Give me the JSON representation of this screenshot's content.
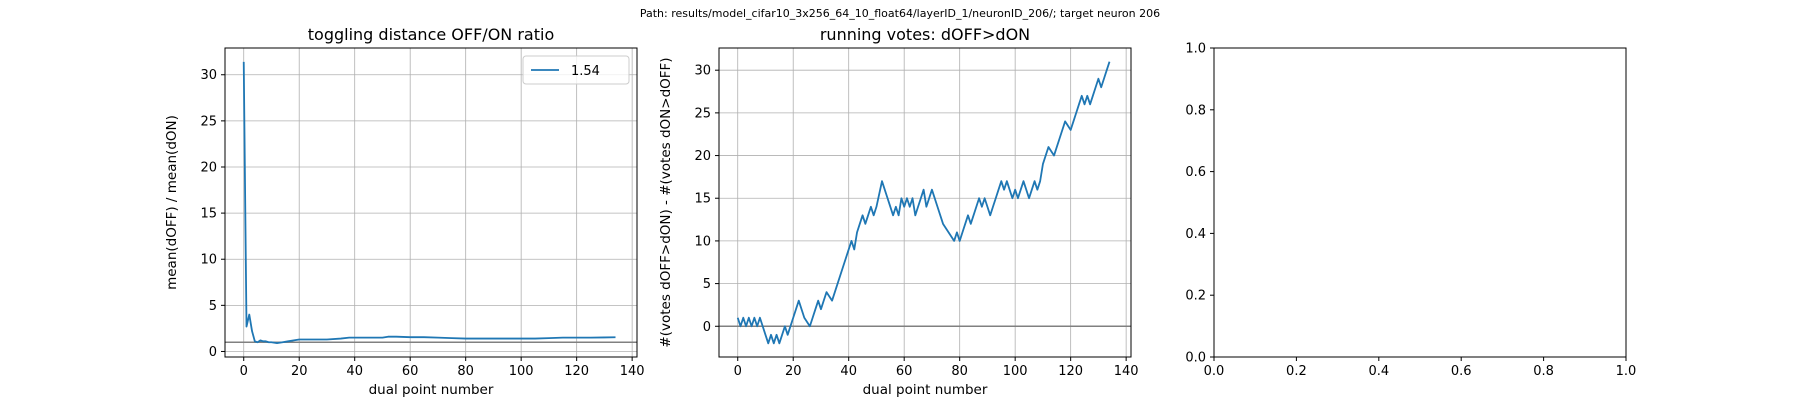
{
  "suptitle": "Path: results/model_cifar10_3x256_64_10_float64/layerID_1/neuronID_206/; target neuron 206",
  "chart_data": [
    {
      "type": "line",
      "title": "toggling distance OFF/ON ratio",
      "xlabel": "dual point number",
      "ylabel": "mean(dOFF) / mean(dON)",
      "xlim": [
        -6.75,
        141.75
      ],
      "ylim": [
        -0.6,
        32.9
      ],
      "xticks": [
        0,
        20,
        40,
        60,
        80,
        100,
        120,
        140
      ],
      "yticks": [
        0,
        5,
        10,
        15,
        20,
        25,
        30
      ],
      "grid": true,
      "legend": "top-right",
      "reference_line_y": 1,
      "series": [
        {
          "name": "1.54",
          "color": "#1f77b4",
          "x": [
            0,
            1,
            2,
            3,
            4,
            5,
            6,
            7,
            8,
            9,
            10,
            12,
            14,
            16,
            18,
            20,
            25,
            30,
            35,
            38,
            40,
            45,
            50,
            52,
            55,
            60,
            65,
            70,
            75,
            80,
            85,
            90,
            95,
            100,
            105,
            110,
            115,
            120,
            125,
            130,
            134
          ],
          "y": [
            31.4,
            2.7,
            4.0,
            2.2,
            1.1,
            1.0,
            1.2,
            1.1,
            1.1,
            1.0,
            1.0,
            0.9,
            1.0,
            1.1,
            1.2,
            1.3,
            1.3,
            1.3,
            1.4,
            1.5,
            1.5,
            1.5,
            1.5,
            1.6,
            1.6,
            1.55,
            1.55,
            1.5,
            1.45,
            1.4,
            1.4,
            1.4,
            1.4,
            1.4,
            1.4,
            1.45,
            1.5,
            1.5,
            1.5,
            1.52,
            1.54
          ]
        }
      ]
    },
    {
      "type": "line",
      "title": "running votes: dOFF>dON",
      "xlabel": "dual point number",
      "ylabel": "#(votes dOFF>dON) - #(votes dON>dOFF)",
      "xlim": [
        -6.75,
        141.75
      ],
      "ylim": [
        -3.6,
        32.6
      ],
      "xticks": [
        0,
        20,
        40,
        60,
        80,
        100,
        120,
        140
      ],
      "yticks": [
        0,
        5,
        10,
        15,
        20,
        25,
        30
      ],
      "grid": true,
      "reference_line_y": 0,
      "series": [
        {
          "color": "#1f77b4",
          "x": [
            0,
            1,
            2,
            3,
            4,
            5,
            6,
            7,
            8,
            9,
            10,
            11,
            12,
            13,
            14,
            15,
            16,
            17,
            18,
            20,
            22,
            24,
            26,
            27,
            28,
            29,
            30,
            32,
            34,
            36,
            38,
            40,
            41,
            42,
            43,
            44,
            45,
            46,
            47,
            48,
            49,
            50,
            52,
            54,
            56,
            57,
            58,
            59,
            60,
            61,
            62,
            63,
            64,
            65,
            66,
            67,
            68,
            70,
            72,
            74,
            76,
            78,
            79,
            80,
            81,
            82,
            83,
            84,
            85,
            86,
            87,
            88,
            89,
            90,
            91,
            92,
            93,
            94,
            95,
            96,
            97,
            98,
            99,
            100,
            101,
            102,
            103,
            104,
            105,
            106,
            107,
            108,
            109,
            110,
            112,
            114,
            116,
            118,
            120,
            121,
            122,
            123,
            124,
            125,
            126,
            127,
            128,
            129,
            130,
            131,
            132,
            133,
            134
          ],
          "y": [
            1,
            0,
            1,
            0,
            1,
            0,
            1,
            0,
            1,
            0,
            -1,
            -2,
            -1,
            -2,
            -1,
            -2,
            -1,
            0,
            -1,
            1,
            3,
            1,
            0,
            1,
            2,
            3,
            2,
            4,
            3,
            5,
            7,
            9,
            10,
            9,
            11,
            12,
            13,
            12,
            13,
            14,
            13,
            14,
            17,
            15,
            13,
            14,
            13,
            15,
            14,
            15,
            14,
            15,
            13,
            14,
            15,
            16,
            14,
            16,
            14,
            12,
            11,
            10,
            11,
            10,
            11,
            12,
            13,
            12,
            13,
            14,
            15,
            14,
            15,
            14,
            13,
            14,
            15,
            16,
            17,
            16,
            17,
            16,
            15,
            16,
            15,
            16,
            17,
            16,
            15,
            16,
            17,
            16,
            17,
            19,
            21,
            20,
            22,
            24,
            23,
            24,
            25,
            26,
            27,
            26,
            27,
            26,
            27,
            28,
            29,
            28,
            29,
            30,
            31
          ]
        }
      ]
    },
    {
      "type": "line",
      "title": "",
      "xlabel": "",
      "ylabel": "",
      "xlim": [
        0,
        1
      ],
      "ylim": [
        0,
        1
      ],
      "xticks": [
        0,
        0.2,
        0.4,
        0.6,
        0.8,
        1
      ],
      "yticks": [
        0,
        0.2,
        0.4,
        0.6,
        0.8,
        1
      ],
      "tick_labels": [
        "0.0",
        "0.2",
        "0.4",
        "0.6",
        "0.8",
        "1.0"
      ],
      "grid": false,
      "series": []
    }
  ]
}
